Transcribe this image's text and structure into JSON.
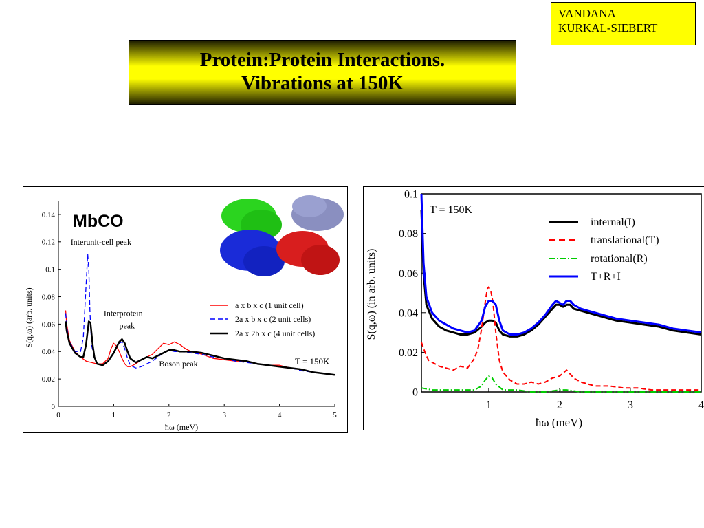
{
  "author": {
    "line1": "VANDANA",
    "line2": "KURKAL-SIEBERT"
  },
  "title": {
    "line1": "Protein:Protein Interactions.",
    "line2": "Vibrations at 150K"
  },
  "colors": {
    "title_bg": "#ffff00",
    "author_bg": "#ffff00",
    "red": "#ff0000",
    "blue": "#0000ff",
    "green": "#00cc00",
    "black": "#000000"
  },
  "chart_data": [
    {
      "type": "line",
      "title": "MbCO",
      "xlabel": "ħω (meV)",
      "ylabel": "S(q,ω) (arb. units)",
      "xlim": [
        0,
        5
      ],
      "ylim": [
        0,
        0.15
      ],
      "xticks": [
        "0",
        "1",
        "2",
        "3",
        "4",
        "5"
      ],
      "yticks": [
        "0",
        "0.02",
        "0.04",
        "0.06",
        "0.08",
        "0.1",
        "0.12",
        "0.14"
      ],
      "temperature_label": "T = 150K",
      "annotations": [
        {
          "text": "Interunit-cell peak",
          "x": 0.22,
          "y": 0.118
        },
        {
          "text": "Interprotein",
          "x": 0.82,
          "y": 0.066
        },
        {
          "text": "peak",
          "x": 1.1,
          "y": 0.057
        },
        {
          "text": "Boson peak",
          "x": 1.82,
          "y": 0.029
        }
      ],
      "series": [
        {
          "name": "a x b x c (1 unit cell)",
          "color": "#ff0000",
          "dash": "solid",
          "x": [
            0.13,
            0.15,
            0.2,
            0.3,
            0.4,
            0.5,
            0.6,
            0.7,
            0.8,
            0.9,
            0.95,
            1.0,
            1.05,
            1.1,
            1.15,
            1.2,
            1.25,
            1.3,
            1.4,
            1.5,
            1.6,
            1.7,
            1.8,
            1.9,
            2.0,
            2.1,
            2.2,
            2.3,
            2.4,
            2.6,
            2.8,
            3.0,
            3.2,
            3.4,
            3.6,
            3.8,
            4.0,
            4.2,
            4.4,
            4.6,
            4.8,
            5.0
          ],
          "y": [
            0.07,
            0.06,
            0.048,
            0.04,
            0.036,
            0.033,
            0.032,
            0.031,
            0.031,
            0.035,
            0.042,
            0.046,
            0.044,
            0.04,
            0.035,
            0.031,
            0.029,
            0.029,
            0.031,
            0.034,
            0.036,
            0.038,
            0.042,
            0.046,
            0.045,
            0.047,
            0.045,
            0.042,
            0.04,
            0.038,
            0.035,
            0.034,
            0.033,
            0.033,
            0.031,
            0.03,
            0.03,
            0.028,
            0.027,
            0.025,
            0.024,
            0.023
          ]
        },
        {
          "name": "2a  x b x c (2 unit cells)",
          "color": "#0000ff",
          "dash": "dashed",
          "x": [
            0.13,
            0.15,
            0.2,
            0.3,
            0.4,
            0.45,
            0.5,
            0.53,
            0.55,
            0.57,
            0.6,
            0.65,
            0.7,
            0.8,
            0.9,
            1.0,
            1.1,
            1.15,
            1.2,
            1.25,
            1.3,
            1.4,
            1.5,
            1.6,
            1.7,
            1.8,
            1.9,
            2.0,
            2.1,
            2.2,
            2.4,
            2.6,
            2.8,
            3.0,
            3.2,
            3.4,
            3.6,
            3.8,
            4.0,
            4.2,
            4.4,
            4.6,
            4.8,
            5.0
          ],
          "y": [
            0.068,
            0.058,
            0.047,
            0.04,
            0.04,
            0.05,
            0.088,
            0.111,
            0.1,
            0.07,
            0.045,
            0.035,
            0.031,
            0.03,
            0.033,
            0.039,
            0.046,
            0.047,
            0.042,
            0.035,
            0.03,
            0.028,
            0.029,
            0.031,
            0.033,
            0.036,
            0.039,
            0.041,
            0.04,
            0.04,
            0.039,
            0.038,
            0.036,
            0.035,
            0.033,
            0.032,
            0.031,
            0.03,
            0.029,
            0.028,
            0.026,
            0.025,
            0.024,
            0.023
          ]
        },
        {
          "name": "2a x 2b x c (4 unit cells)",
          "color": "#000000",
          "dash": "solid",
          "x": [
            0.13,
            0.15,
            0.2,
            0.3,
            0.4,
            0.45,
            0.5,
            0.55,
            0.58,
            0.62,
            0.65,
            0.7,
            0.8,
            0.9,
            1.0,
            1.05,
            1.1,
            1.15,
            1.2,
            1.25,
            1.3,
            1.4,
            1.5,
            1.6,
            1.7,
            1.8,
            1.9,
            2.0,
            2.1,
            2.2,
            2.4,
            2.6,
            2.8,
            3.0,
            3.2,
            3.4,
            3.6,
            3.8,
            4.0,
            4.2,
            4.4,
            4.6,
            4.8,
            5.0
          ],
          "y": [
            0.062,
            0.055,
            0.046,
            0.039,
            0.036,
            0.036,
            0.045,
            0.062,
            0.061,
            0.045,
            0.036,
            0.031,
            0.03,
            0.033,
            0.039,
            0.043,
            0.047,
            0.049,
            0.046,
            0.04,
            0.035,
            0.032,
            0.034,
            0.036,
            0.035,
            0.037,
            0.039,
            0.041,
            0.041,
            0.04,
            0.04,
            0.039,
            0.037,
            0.035,
            0.034,
            0.033,
            0.031,
            0.03,
            0.029,
            0.028,
            0.027,
            0.025,
            0.024,
            0.023
          ]
        }
      ],
      "legend_position": "center-right",
      "grid": false
    },
    {
      "type": "line",
      "title": "",
      "xlabel": "ħω (meV)",
      "ylabel": "S(q,ω) (in arb. units)",
      "xlim": [
        0.05,
        4
      ],
      "ylim": [
        0,
        0.1
      ],
      "xticks": [
        "1",
        "2",
        "3",
        "4"
      ],
      "yticks": [
        "0",
        "0.02",
        "0.04",
        "0.06",
        "0.08",
        "0.1"
      ],
      "temperature_label": "T = 150K",
      "series": [
        {
          "name": "internal(I)",
          "color": "#000000",
          "dash": "solid",
          "x": [
            0.05,
            0.08,
            0.12,
            0.2,
            0.3,
            0.4,
            0.5,
            0.6,
            0.7,
            0.8,
            0.9,
            0.95,
            1.0,
            1.05,
            1.1,
            1.15,
            1.2,
            1.3,
            1.4,
            1.5,
            1.6,
            1.7,
            1.8,
            1.9,
            1.95,
            2.0,
            2.05,
            2.1,
            2.15,
            2.2,
            2.3,
            2.4,
            2.5,
            2.6,
            2.8,
            3.0,
            3.2,
            3.4,
            3.6,
            3.8,
            4.0
          ],
          "y": [
            0.092,
            0.06,
            0.044,
            0.037,
            0.033,
            0.031,
            0.03,
            0.029,
            0.029,
            0.03,
            0.033,
            0.035,
            0.036,
            0.036,
            0.035,
            0.031,
            0.029,
            0.028,
            0.028,
            0.029,
            0.031,
            0.034,
            0.038,
            0.042,
            0.044,
            0.044,
            0.043,
            0.044,
            0.044,
            0.042,
            0.041,
            0.04,
            0.039,
            0.038,
            0.036,
            0.035,
            0.034,
            0.033,
            0.031,
            0.03,
            0.029
          ]
        },
        {
          "name": "translational(T)",
          "color": "#ff0000",
          "dash": "dashed",
          "x": [
            0.05,
            0.1,
            0.15,
            0.2,
            0.3,
            0.4,
            0.5,
            0.6,
            0.7,
            0.8,
            0.85,
            0.9,
            0.95,
            0.98,
            1.0,
            1.03,
            1.06,
            1.1,
            1.15,
            1.2,
            1.3,
            1.4,
            1.5,
            1.6,
            1.7,
            1.8,
            1.9,
            2.0,
            2.1,
            2.15,
            2.2,
            2.3,
            2.5,
            2.7,
            2.9,
            3.1,
            3.3,
            3.5,
            3.7,
            3.9,
            4.0
          ],
          "y": [
            0.025,
            0.02,
            0.016,
            0.015,
            0.013,
            0.012,
            0.011,
            0.013,
            0.012,
            0.017,
            0.022,
            0.032,
            0.045,
            0.052,
            0.053,
            0.051,
            0.045,
            0.03,
            0.016,
            0.01,
            0.006,
            0.004,
            0.004,
            0.005,
            0.004,
            0.005,
            0.007,
            0.008,
            0.011,
            0.009,
            0.007,
            0.005,
            0.003,
            0.003,
            0.002,
            0.002,
            0.001,
            0.001,
            0.001,
            0.001,
            0.001
          ]
        },
        {
          "name": "rotational(R)",
          "color": "#00cc00",
          "dash": "dashdot",
          "x": [
            0.05,
            0.2,
            0.4,
            0.6,
            0.8,
            0.9,
            0.95,
            1.0,
            1.05,
            1.1,
            1.2,
            1.4,
            1.6,
            1.8,
            2.0,
            2.1,
            2.3,
            2.6,
            3.0,
            3.5,
            4.0
          ],
          "y": [
            0.002,
            0.001,
            0.001,
            0.001,
            0.001,
            0.003,
            0.006,
            0.008,
            0.007,
            0.004,
            0.001,
            0.001,
            0.0,
            0.0,
            0.001,
            0.001,
            0.0,
            0.0,
            0.0,
            0.0,
            0.0
          ]
        },
        {
          "name": "T+R+I",
          "color": "#0000ff",
          "dash": "solid",
          "x": [
            0.05,
            0.08,
            0.12,
            0.2,
            0.3,
            0.4,
            0.5,
            0.6,
            0.7,
            0.8,
            0.9,
            0.95,
            1.0,
            1.05,
            1.1,
            1.15,
            1.2,
            1.3,
            1.4,
            1.5,
            1.6,
            1.7,
            1.8,
            1.9,
            1.95,
            2.0,
            2.05,
            2.1,
            2.15,
            2.2,
            2.3,
            2.4,
            2.5,
            2.6,
            2.8,
            3.0,
            3.2,
            3.4,
            3.6,
            3.8,
            4.0
          ],
          "y": [
            0.1,
            0.065,
            0.048,
            0.04,
            0.036,
            0.034,
            0.032,
            0.031,
            0.03,
            0.031,
            0.036,
            0.043,
            0.046,
            0.046,
            0.044,
            0.036,
            0.031,
            0.029,
            0.029,
            0.03,
            0.032,
            0.035,
            0.039,
            0.044,
            0.046,
            0.045,
            0.044,
            0.046,
            0.046,
            0.044,
            0.042,
            0.041,
            0.04,
            0.039,
            0.037,
            0.036,
            0.035,
            0.034,
            0.032,
            0.031,
            0.03
          ]
        }
      ],
      "legend_position": "top-right",
      "grid": false
    }
  ]
}
